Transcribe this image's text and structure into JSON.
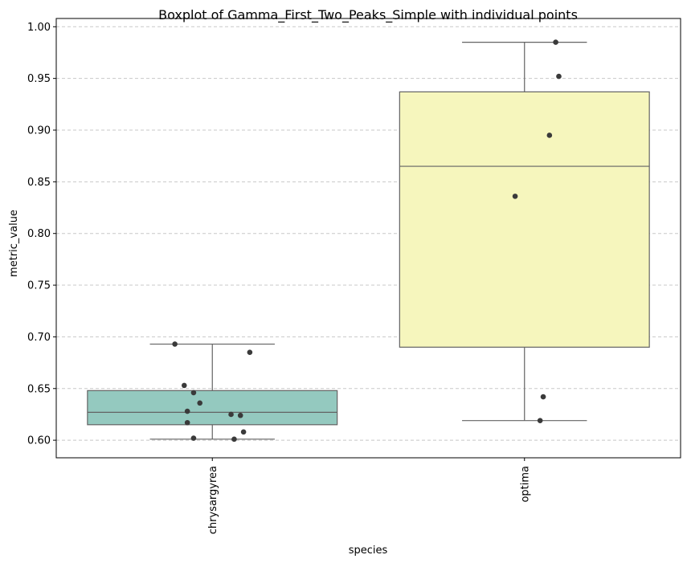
{
  "chart_data": {
    "type": "box",
    "title": "Boxplot of Gamma_First_Two_Peaks_Simple with individual points",
    "xlabel": "species",
    "ylabel": "metric_value",
    "ylim": [
      0.583,
      1.008
    ],
    "yticks": [
      0.6,
      0.65,
      0.7,
      0.75,
      0.8,
      0.85,
      0.9,
      0.95,
      1.0
    ],
    "ytick_labels": [
      "0.60",
      "0.65",
      "0.70",
      "0.75",
      "0.80",
      "0.85",
      "0.90",
      "0.95",
      "1.00"
    ],
    "grid": "horizontal dashed",
    "categories": [
      "chrysargyrea",
      "optima"
    ],
    "boxes": [
      {
        "category": "chrysargyrea",
        "color": "#94c9bf",
        "whisker_low": 0.601,
        "q1": 0.615,
        "median": 0.627,
        "q3": 0.648,
        "whisker_high": 0.693,
        "points": [
          {
            "jitter": -0.12,
            "value": 0.693
          },
          {
            "jitter": 0.12,
            "value": 0.685
          },
          {
            "jitter": -0.09,
            "value": 0.653
          },
          {
            "jitter": -0.06,
            "value": 0.646
          },
          {
            "jitter": -0.04,
            "value": 0.636
          },
          {
            "jitter": -0.08,
            "value": 0.628
          },
          {
            "jitter": 0.06,
            "value": 0.625
          },
          {
            "jitter": 0.09,
            "value": 0.624
          },
          {
            "jitter": -0.08,
            "value": 0.617
          },
          {
            "jitter": 0.1,
            "value": 0.608
          },
          {
            "jitter": -0.06,
            "value": 0.602
          },
          {
            "jitter": 0.07,
            "value": 0.601
          }
        ]
      },
      {
        "category": "optima",
        "color": "#f6f6bd",
        "whisker_low": 0.619,
        "q1": 0.69,
        "median": 0.865,
        "q3": 0.937,
        "whisker_high": 0.985,
        "points": [
          {
            "jitter": 0.1,
            "value": 0.985
          },
          {
            "jitter": 0.11,
            "value": 0.952
          },
          {
            "jitter": 0.08,
            "value": 0.895
          },
          {
            "jitter": -0.03,
            "value": 0.836
          },
          {
            "jitter": 0.06,
            "value": 0.642
          },
          {
            "jitter": 0.05,
            "value": 0.619
          }
        ]
      }
    ]
  }
}
